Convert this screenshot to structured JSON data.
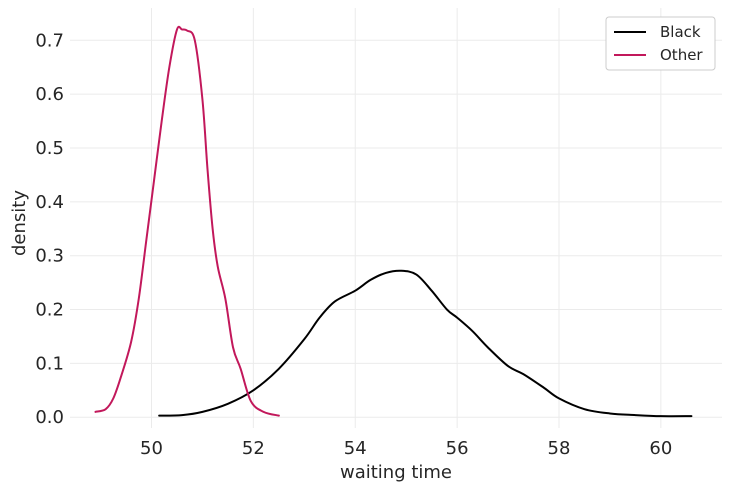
{
  "chart_data": {
    "type": "line",
    "title": "",
    "xlabel": "waiting time",
    "ylabel": "density",
    "xlim": [
      48.4,
      61.2
    ],
    "ylim": [
      -0.02,
      0.76
    ],
    "xticks": [
      50,
      52,
      54,
      56,
      58,
      60
    ],
    "yticks": [
      0.0,
      0.1,
      0.2,
      0.3,
      0.4,
      0.5,
      0.6,
      0.7
    ],
    "xtick_labels": [
      "50",
      "52",
      "54",
      "56",
      "58",
      "60"
    ],
    "ytick_labels": [
      "0.0",
      "0.1",
      "0.2",
      "0.3",
      "0.4",
      "0.5",
      "0.6",
      "0.7"
    ],
    "grid": true,
    "legend_position": "top-right",
    "series": [
      {
        "name": "Black",
        "color": "#000000",
        "x": [
          50.15,
          50.6,
          51.0,
          51.5,
          52.0,
          52.5,
          53.0,
          53.3,
          53.6,
          54.0,
          54.3,
          54.6,
          54.9,
          55.2,
          55.5,
          55.8,
          56.0,
          56.3,
          56.6,
          57.0,
          57.3,
          57.7,
          58.0,
          58.5,
          59.0,
          59.5,
          60.0,
          60.6
        ],
        "y": [
          0.003,
          0.004,
          0.01,
          0.025,
          0.05,
          0.09,
          0.145,
          0.185,
          0.215,
          0.235,
          0.255,
          0.268,
          0.272,
          0.265,
          0.235,
          0.2,
          0.185,
          0.16,
          0.13,
          0.095,
          0.08,
          0.055,
          0.035,
          0.015,
          0.007,
          0.004,
          0.002,
          0.002
        ]
      },
      {
        "name": "Other",
        "color": "#c2185b",
        "x": [
          48.9,
          49.1,
          49.25,
          49.4,
          49.6,
          49.75,
          49.9,
          50.05,
          50.2,
          50.35,
          50.5,
          50.6,
          50.7,
          50.85,
          51.0,
          51.1,
          51.2,
          51.3,
          51.45,
          51.6,
          51.75,
          51.95,
          52.2,
          52.5
        ],
        "y": [
          0.01,
          0.015,
          0.035,
          0.075,
          0.14,
          0.22,
          0.33,
          0.44,
          0.55,
          0.65,
          0.72,
          0.72,
          0.718,
          0.7,
          0.59,
          0.46,
          0.35,
          0.28,
          0.22,
          0.13,
          0.09,
          0.03,
          0.01,
          0.003
        ]
      }
    ]
  }
}
